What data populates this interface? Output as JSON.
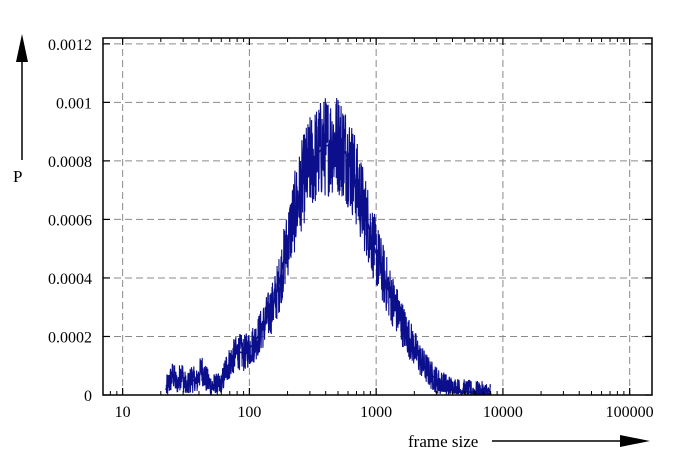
{
  "chart_data": {
    "type": "line",
    "title": "",
    "xlabel": "frame size",
    "ylabel": "P",
    "x_scale": "log",
    "xlim": [
      7,
      150000
    ],
    "ylim": [
      0,
      0.00122
    ],
    "x_ticks": [
      10,
      100,
      1000,
      10000,
      100000
    ],
    "x_tick_labels": [
      "10",
      "100",
      "1000",
      "10000",
      "100000"
    ],
    "y_ticks": [
      0,
      0.0002,
      0.0004,
      0.0006,
      0.0008,
      0.001,
      0.0012
    ],
    "y_tick_labels": [
      "0",
      "0.0002",
      "0.0004",
      "0.0006",
      "0.0008",
      "0.001",
      "0.0012"
    ],
    "grid": true,
    "grid_style": "dashed",
    "legend": "none",
    "series": [
      {
        "color": "#0b0f8c",
        "points": [
          [
            22,
            2e-05
          ],
          [
            25,
            7e-05
          ],
          [
            27,
            3e-05
          ],
          [
            29,
            8e-05
          ],
          [
            32,
            2e-05
          ],
          [
            35,
            6e-05
          ],
          [
            38,
            4e-05
          ],
          [
            42,
            9e-05
          ],
          [
            46,
            5e-05
          ],
          [
            50,
            3e-05
          ],
          [
            60,
            3e-05
          ],
          [
            65,
            9e-05
          ],
          [
            70,
            0.00011
          ],
          [
            75,
            0.00013
          ],
          [
            82,
            0.00015
          ],
          [
            90,
            0.00014
          ],
          [
            100,
            0.00016
          ],
          [
            110,
            0.00018
          ],
          [
            120,
            0.00021
          ],
          [
            130,
            0.00024
          ],
          [
            140,
            0.00027
          ],
          [
            155,
            0.00031
          ],
          [
            170,
            0.00037
          ],
          [
            185,
            0.00045
          ],
          [
            200,
            0.00052
          ],
          [
            220,
            0.0006
          ],
          [
            240,
            0.00066
          ],
          [
            260,
            0.00072
          ],
          [
            285,
            0.00077
          ],
          [
            310,
            0.0008
          ],
          [
            340,
            0.00082
          ],
          [
            370,
            0.00084
          ],
          [
            400,
            0.00085
          ],
          [
            450,
            0.00086
          ],
          [
            500,
            0.00086
          ],
          [
            550,
            0.00084
          ],
          [
            600,
            0.00081
          ],
          [
            650,
            0.00077
          ],
          [
            700,
            0.00072
          ],
          [
            780,
            0.00065
          ],
          [
            870,
            0.00058
          ],
          [
            970,
            0.0005
          ],
          [
            1100,
            0.00043
          ],
          [
            1250,
            0.00036
          ],
          [
            1450,
            0.00029
          ],
          [
            1700,
            0.00022
          ],
          [
            2000,
            0.00016
          ],
          [
            2300,
            0.00011
          ],
          [
            2700,
            7e-05
          ],
          [
            3200,
            4e-05
          ],
          [
            3800,
            2.5e-05
          ],
          [
            4500,
            1.5e-05
          ],
          [
            5500,
            1e-05
          ],
          [
            6500,
            7e-06
          ],
          [
            8000,
            4e-06
          ]
        ]
      }
    ]
  }
}
